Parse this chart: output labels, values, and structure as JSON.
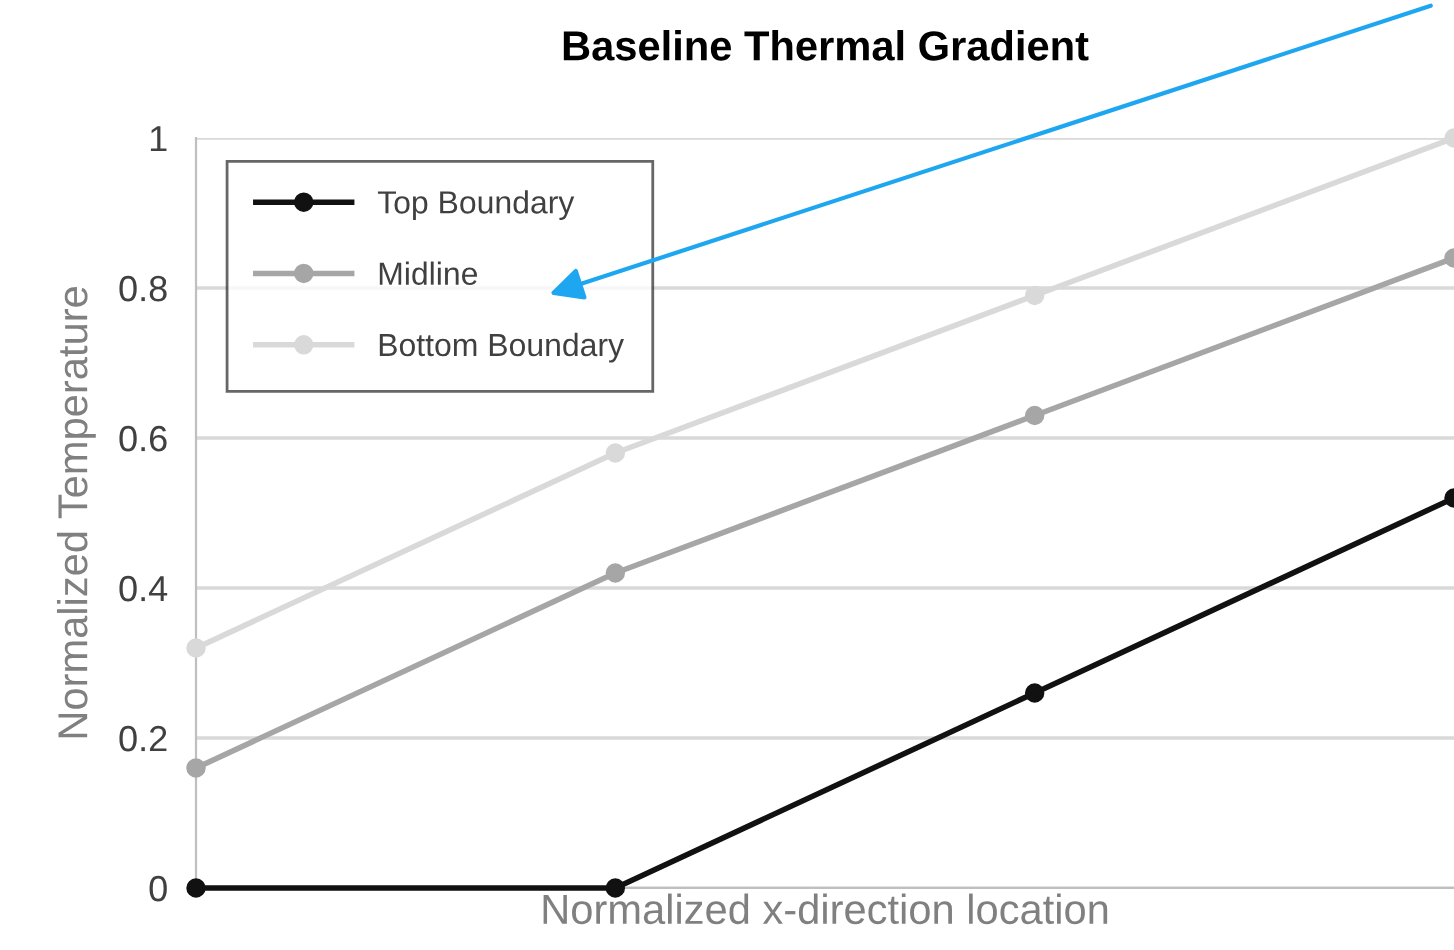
{
  "chart_data": {
    "type": "line",
    "title": "Baseline Thermal Gradient",
    "xlabel": "Normalized x-direction location",
    "ylabel": "Normalized Temperature",
    "categories": [
      null,
      null,
      null,
      null
    ],
    "series": [
      {
        "name": "Top Boundary",
        "color": "#111111",
        "values": [
          0,
          0,
          0.26,
          0.52
        ]
      },
      {
        "name": "Midline",
        "color": "#a6a6a6",
        "values": [
          0.16,
          0.42,
          0.63,
          0.84
        ]
      },
      {
        "name": "Bottom Boundary",
        "color": "#d9d9d9",
        "values": [
          0.32,
          0.58,
          0.79,
          1.0
        ]
      }
    ],
    "ylim": [
      0,
      1
    ],
    "yticks": [
      0,
      0.2,
      0.4,
      0.6,
      0.8,
      1
    ],
    "grid": "y",
    "legend": "top left",
    "marker": "circle",
    "line_style": "solid",
    "tick_labels": "y"
  }
}
